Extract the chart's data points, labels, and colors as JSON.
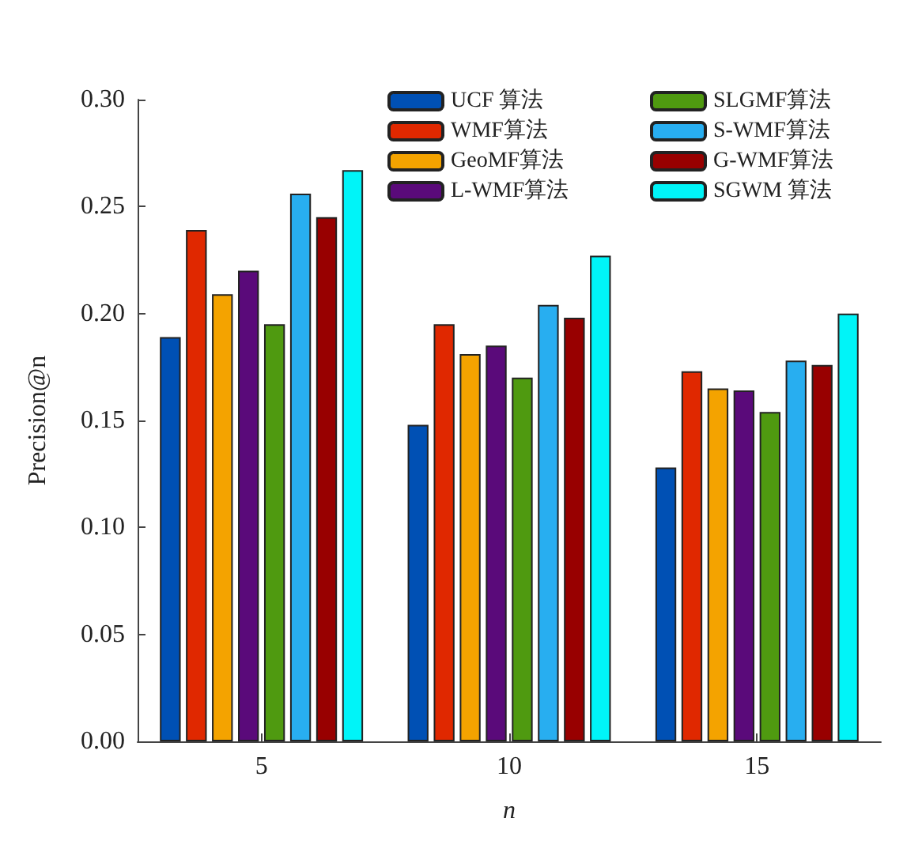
{
  "chart_data": {
    "type": "bar",
    "xlabel": "n",
    "ylabel": "Precision@n",
    "categories": [
      "5",
      "10",
      "15"
    ],
    "series": [
      {
        "name": "UCF 算法",
        "color": "#0050b4",
        "values": [
          0.189,
          0.148,
          0.128
        ]
      },
      {
        "name": "WMF算法",
        "color": "#e02800",
        "values": [
          0.239,
          0.195,
          0.173
        ]
      },
      {
        "name": "GeoMF算法",
        "color": "#f4a300",
        "values": [
          0.209,
          0.181,
          0.165
        ]
      },
      {
        "name": "L-WMF算法",
        "color": "#5a0a7a",
        "values": [
          0.22,
          0.185,
          0.164
        ]
      },
      {
        "name": "SLGMF算法",
        "color": "#4f9a10",
        "values": [
          0.195,
          0.17,
          0.154
        ]
      },
      {
        "name": "S-WMF算法",
        "color": "#28aef0",
        "values": [
          0.256,
          0.204,
          0.178
        ]
      },
      {
        "name": "G-WMF算法",
        "color": "#980000",
        "values": [
          0.245,
          0.198,
          0.176
        ]
      },
      {
        "name": "SGWM 算法",
        "color": "#00f4f8",
        "values": [
          0.267,
          0.227,
          0.2
        ]
      }
    ],
    "ylim": [
      0,
      0.3
    ],
    "yticks": [
      {
        "value": 0,
        "label": "0.00"
      },
      {
        "value": 0.05,
        "label": "0.05"
      },
      {
        "value": 0.1,
        "label": "0.10"
      },
      {
        "value": 0.15,
        "label": "0.15"
      },
      {
        "value": 0.2,
        "label": "0.20"
      },
      {
        "value": 0.25,
        "label": "0.25"
      },
      {
        "value": 0.3,
        "label": "0.30"
      }
    ],
    "grid": false,
    "legend": "top right"
  }
}
